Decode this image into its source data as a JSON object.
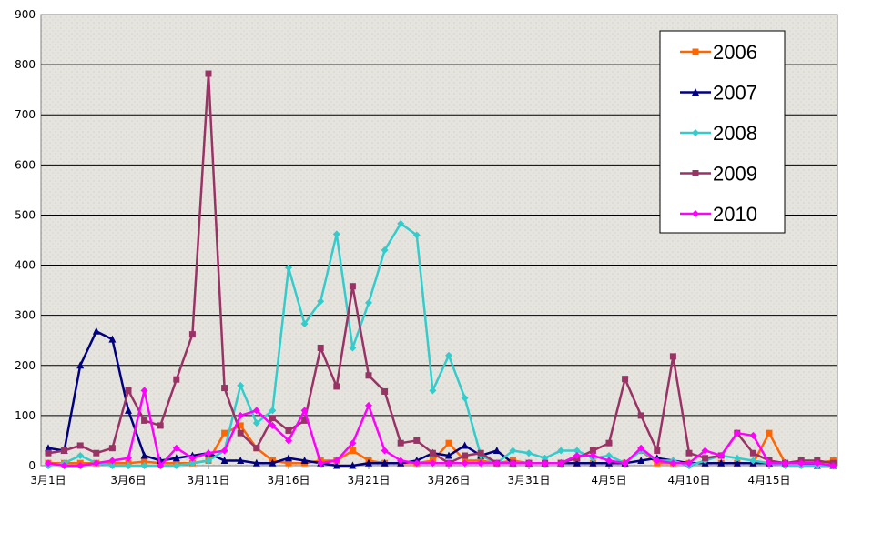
{
  "chart_data": {
    "type": "line",
    "title": "",
    "xlabel": "",
    "ylabel": "",
    "ylim": [
      0,
      900
    ],
    "yticks": [
      0,
      100,
      200,
      300,
      400,
      500,
      600,
      700,
      800,
      900
    ],
    "grid": true,
    "legend_position": "top-right",
    "x": [
      "3月1日",
      "3月2日",
      "3月3日",
      "3月4日",
      "3月5日",
      "3月6日",
      "3月7日",
      "3月8日",
      "3月9日",
      "3月10日",
      "3月11日",
      "3月12日",
      "3月13日",
      "3月14日",
      "3月15日",
      "3月16日",
      "3月17日",
      "3月18日",
      "3月19日",
      "3月20日",
      "3月21日",
      "3月22日",
      "3月23日",
      "3月24日",
      "3月25日",
      "3月26日",
      "3月27日",
      "3月28日",
      "3月29日",
      "3月30日",
      "3月31日",
      "4月1日",
      "4月2日",
      "4月3日",
      "4月4日",
      "4月5日",
      "4月6日",
      "4月7日",
      "4月8日",
      "4月9日",
      "4月10日",
      "4月11日",
      "4月12日",
      "4月13日",
      "4月14日",
      "4月15日",
      "4月16日",
      "4月17日",
      "4月18日",
      "4月19日"
    ],
    "x_tick_labels": [
      "3月1日",
      "3月6日",
      "3月11日",
      "3月16日",
      "3月21日",
      "3月26日",
      "3月31日",
      "4月5日",
      "4月10日",
      "4月15日"
    ],
    "series": [
      {
        "name": "2006",
        "color": "#ff6600",
        "marker": "square",
        "values": [
          5,
          5,
          5,
          5,
          5,
          5,
          8,
          5,
          5,
          5,
          10,
          65,
          80,
          35,
          10,
          5,
          5,
          10,
          10,
          30,
          10,
          5,
          5,
          5,
          10,
          45,
          10,
          10,
          5,
          10,
          5,
          5,
          5,
          5,
          5,
          5,
          5,
          30,
          5,
          5,
          5,
          5,
          5,
          5,
          5,
          65,
          5,
          5,
          5,
          10
        ]
      },
      {
        "name": "2007",
        "color": "#000080",
        "marker": "triangle",
        "values": [
          35,
          30,
          200,
          268,
          252,
          110,
          20,
          10,
          15,
          20,
          25,
          10,
          10,
          5,
          5,
          15,
          10,
          5,
          0,
          0,
          5,
          5,
          5,
          10,
          25,
          20,
          40,
          20,
          30,
          5,
          5,
          5,
          5,
          5,
          5,
          5,
          5,
          10,
          15,
          10,
          5,
          5,
          5,
          5,
          5,
          5,
          5,
          5,
          0,
          0
        ]
      },
      {
        "name": "2008",
        "color": "#33cccc",
        "marker": "diamond",
        "values": [
          0,
          5,
          20,
          5,
          0,
          0,
          0,
          0,
          0,
          5,
          10,
          30,
          160,
          85,
          110,
          395,
          283,
          328,
          462,
          235,
          325,
          430,
          483,
          460,
          150,
          220,
          135,
          20,
          5,
          30,
          25,
          15,
          30,
          30,
          15,
          20,
          5,
          30,
          10,
          10,
          0,
          10,
          20,
          15,
          10,
          5,
          0,
          0,
          0,
          0
        ]
      },
      {
        "name": "2009",
        "color": "#993366",
        "marker": "square",
        "values": [
          25,
          30,
          40,
          25,
          35,
          150,
          90,
          80,
          172,
          262,
          782,
          155,
          65,
          35,
          95,
          70,
          90,
          235,
          158,
          358,
          180,
          148,
          45,
          50,
          25,
          5,
          20,
          25,
          5,
          5,
          5,
          5,
          5,
          15,
          30,
          45,
          173,
          100,
          30,
          218,
          25,
          15,
          20,
          65,
          25,
          10,
          5,
          10,
          10,
          5
        ]
      },
      {
        "name": "2010",
        "color": "#ff00ff",
        "marker": "diamond",
        "values": [
          5,
          0,
          0,
          5,
          10,
          15,
          150,
          0,
          35,
          15,
          25,
          30,
          100,
          110,
          80,
          50,
          110,
          5,
          10,
          45,
          120,
          30,
          10,
          5,
          5,
          5,
          5,
          5,
          5,
          5,
          5,
          5,
          5,
          20,
          20,
          10,
          5,
          35,
          10,
          5,
          5,
          30,
          20,
          65,
          60,
          5,
          5,
          5,
          5,
          0
        ]
      }
    ]
  }
}
